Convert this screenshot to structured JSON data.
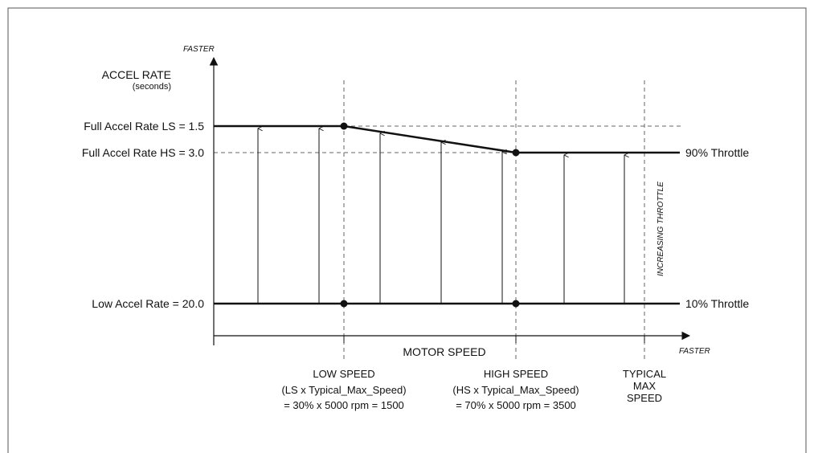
{
  "y_axis": {
    "title": "ACCEL RATE",
    "unit": "(seconds)",
    "direction": "FASTER",
    "levels": [
      {
        "label": "Full Accel Rate LS = 1.5"
      },
      {
        "label": "Full Accel Rate HS = 3.0"
      },
      {
        "label": "Low Accel Rate = 20.0"
      }
    ]
  },
  "x_axis": {
    "title": "MOTOR SPEED",
    "direction": "FASTER",
    "markers": [
      {
        "lines": [
          "LOW SPEED",
          "(LS x Typical_Max_Speed)",
          "= 30% x 5000 rpm = 1500"
        ]
      },
      {
        "lines": [
          "HIGH SPEED",
          "(HS x Typical_Max_Speed)",
          "= 70% x 5000 rpm = 3500"
        ]
      },
      {
        "lines": [
          "TYPICAL",
          "MAX",
          "SPEED"
        ]
      }
    ]
  },
  "throttle_labels": {
    "high": "90% Throttle",
    "low": "10% Throttle",
    "increasing": "INCREASING THROTTLE"
  },
  "colors": {
    "line": "#111111",
    "dashed": "#666666",
    "frame": "#555555"
  }
}
